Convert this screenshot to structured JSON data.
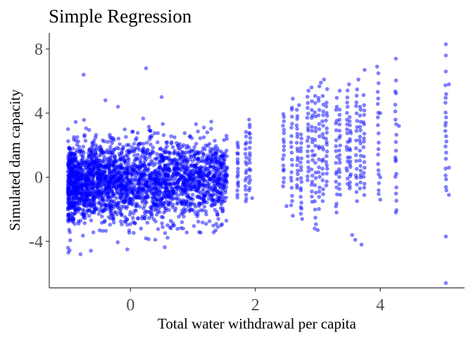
{
  "chart_data": {
    "type": "scatter",
    "title": "Simple Regression",
    "xlabel": "Total water withdrawal per capita",
    "ylabel": "Simulated dam capacity",
    "xlim": [
      -1.3,
      5.35
    ],
    "ylim": [
      -6.9,
      9.0
    ],
    "x_ticks": [
      0,
      2,
      4
    ],
    "x_tick_labels": [
      "0",
      "2",
      "4"
    ],
    "y_ticks": [
      -4,
      0,
      4,
      8
    ],
    "y_tick_labels": [
      "-4",
      "0",
      "4",
      "8"
    ],
    "grid": false,
    "legend": "none",
    "point_color": "#0000ff",
    "point_opacity": 0.5,
    "series": [
      {
        "points": [
          [
            -0.75,
            6.4
          ],
          [
            0.25,
            6.8
          ],
          [
            -0.4,
            4.8
          ],
          [
            0.5,
            5.0
          ],
          [
            -0.2,
            4.4
          ],
          [
            -1.0,
            -4.4
          ],
          [
            -0.8,
            -4.8
          ],
          [
            -0.05,
            -4.5
          ],
          [
            0.7,
            -3.0
          ],
          [
            1.4,
            -3.1
          ],
          [
            1.45,
            -3.0
          ],
          [
            1.9,
            3.6
          ],
          [
            1.95,
            -1.3
          ],
          [
            2.5,
            -1.8
          ],
          [
            2.6,
            -2.4
          ],
          [
            2.75,
            -2.6
          ],
          [
            2.6,
            4.9
          ],
          [
            2.7,
            4.5
          ],
          [
            2.85,
            5.4
          ],
          [
            2.9,
            5.6
          ],
          [
            2.95,
            -3.2
          ],
          [
            3.0,
            -3.3
          ],
          [
            3.05,
            5.9
          ],
          [
            3.1,
            6.1
          ],
          [
            3.15,
            5.5
          ],
          [
            3.3,
            -2.2
          ],
          [
            3.35,
            5.4
          ],
          [
            3.5,
            5.8
          ],
          [
            3.55,
            -3.6
          ],
          [
            3.6,
            -3.9
          ],
          [
            3.65,
            6.1
          ],
          [
            3.7,
            -4.2
          ],
          [
            3.75,
            6.7
          ],
          [
            3.95,
            6.9
          ],
          [
            4.0,
            -1.4
          ],
          [
            4.25,
            7.4
          ],
          [
            4.25,
            -2.2
          ],
          [
            5.05,
            8.3
          ],
          [
            5.05,
            7.6
          ],
          [
            5.05,
            6.6
          ],
          [
            5.1,
            5.8
          ],
          [
            5.05,
            -3.7
          ],
          [
            5.05,
            -6.6
          ],
          [
            5.05,
            3.4
          ],
          [
            5.1,
            -1.1
          ],
          [
            4.0,
            4.0
          ],
          [
            4.3,
            3.2
          ],
          [
            4.25,
            1.1
          ],
          [
            4.0,
            0.0
          ],
          [
            5.1,
            0.6
          ]
        ]
      }
    ],
    "columns": [
      {
        "x": 1.72,
        "ymin": -1.3,
        "ymax": 2.3
      },
      {
        "x": 1.85,
        "ymin": -1.6,
        "ymax": 2.9
      },
      {
        "x": 1.91,
        "ymin": -1.0,
        "ymax": 3.5
      },
      {
        "x": 2.45,
        "ymin": -0.6,
        "ymax": 4.2
      },
      {
        "x": 2.58,
        "ymin": -1.9,
        "ymax": 4.7
      },
      {
        "x": 2.67,
        "ymin": -0.8,
        "ymax": 4.3
      },
      {
        "x": 2.73,
        "ymin": -2.5,
        "ymax": 2.9
      },
      {
        "x": 2.84,
        "ymin": -0.3,
        "ymax": 5.1
      },
      {
        "x": 2.91,
        "ymin": -1.8,
        "ymax": 4.9
      },
      {
        "x": 2.96,
        "ymin": -3.1,
        "ymax": 5.4
      },
      {
        "x": 3.02,
        "ymin": -2.0,
        "ymax": 5.8
      },
      {
        "x": 3.08,
        "ymin": -1.5,
        "ymax": 5.2
      },
      {
        "x": 3.14,
        "ymin": -0.6,
        "ymax": 4.8
      },
      {
        "x": 3.3,
        "ymin": -2.1,
        "ymax": 5.1
      },
      {
        "x": 3.35,
        "ymin": -1.1,
        "ymax": 4.4
      },
      {
        "x": 3.47,
        "ymin": -0.5,
        "ymax": 5.5
      },
      {
        "x": 3.52,
        "ymin": -0.9,
        "ymax": 3.9
      },
      {
        "x": 3.62,
        "ymin": -1.6,
        "ymax": 5.9
      },
      {
        "x": 3.68,
        "ymin": -0.8,
        "ymax": 4.6
      },
      {
        "x": 3.74,
        "ymin": -1.2,
        "ymax": 5.2
      },
      {
        "x": 3.97,
        "ymin": -1.4,
        "ymax": 6.6
      },
      {
        "x": 4.25,
        "ymin": -2.2,
        "ymax": 6.3
      },
      {
        "x": 5.05,
        "ymin": -1.1,
        "ymax": 5.9
      }
    ]
  }
}
